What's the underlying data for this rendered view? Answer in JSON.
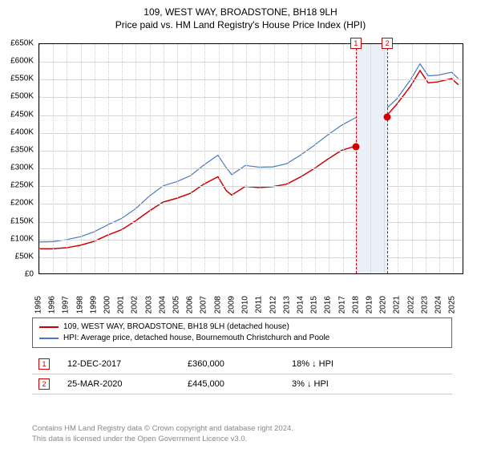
{
  "title": "109, WEST WAY, BROADSTONE, BH18 9LH",
  "subtitle": "Price paid vs. HM Land Registry's House Price Index (HPI)",
  "chart": {
    "type": "line",
    "xlim": [
      1995,
      2025.8
    ],
    "ylim": [
      0,
      650000
    ],
    "ytick_step": 50000,
    "y_prefix": "£",
    "y_suffix": "K",
    "x_ticks": [
      1995,
      1996,
      1997,
      1998,
      1999,
      2000,
      2001,
      2002,
      2003,
      2004,
      2005,
      2006,
      2007,
      2008,
      2009,
      2010,
      2011,
      2012,
      2013,
      2014,
      2015,
      2016,
      2017,
      2018,
      2019,
      2020,
      2021,
      2022,
      2023,
      2024,
      2025
    ],
    "background_color": "#ffffff",
    "grid_color": "#d7d7d7",
    "border_color": "#000000",
    "series": [
      {
        "name": "property",
        "label": "109, WEST WAY, BROADSTONE, BH18 9LH (detached house)",
        "color": "#d40000",
        "line_width": 1.5,
        "points": [
          [
            1995,
            70000
          ],
          [
            1996,
            70000
          ],
          [
            1997,
            73000
          ],
          [
            1998,
            80000
          ],
          [
            1999,
            91000
          ],
          [
            2000,
            109000
          ],
          [
            2001,
            124000
          ],
          [
            2002,
            149000
          ],
          [
            2003,
            177000
          ],
          [
            2004,
            202000
          ],
          [
            2005,
            213000
          ],
          [
            2006,
            227000
          ],
          [
            2007,
            254000
          ],
          [
            2008,
            274000
          ],
          [
            2008.6,
            235000
          ],
          [
            2009,
            222000
          ],
          [
            2010,
            247000
          ],
          [
            2011,
            243000
          ],
          [
            2012,
            246000
          ],
          [
            2013,
            253000
          ],
          [
            2014,
            273000
          ],
          [
            2015,
            297000
          ],
          [
            2016,
            324000
          ],
          [
            2017,
            349000
          ],
          [
            2017.95,
            360000
          ],
          [
            2018.5,
            369000
          ],
          [
            2019,
            374000
          ],
          [
            2020,
            375000
          ],
          [
            2020.23,
            445000
          ],
          [
            2021,
            479000
          ],
          [
            2022,
            530000
          ],
          [
            2022.7,
            575000
          ],
          [
            2023.3,
            540000
          ],
          [
            2024,
            543000
          ],
          [
            2025,
            552000
          ],
          [
            2025.5,
            535000
          ]
        ]
      },
      {
        "name": "hpi",
        "label": "HPI: Average price, detached house, Bournemouth Christchurch and Poole",
        "color": "#4a78c4",
        "line_width": 1.2,
        "points": [
          [
            1995,
            89000
          ],
          [
            1996,
            90000
          ],
          [
            1997,
            96000
          ],
          [
            1998,
            104000
          ],
          [
            1999,
            118000
          ],
          [
            2000,
            138000
          ],
          [
            2001,
            156000
          ],
          [
            2002,
            183000
          ],
          [
            2003,
            219000
          ],
          [
            2004,
            248000
          ],
          [
            2005,
            260000
          ],
          [
            2006,
            277000
          ],
          [
            2007,
            308000
          ],
          [
            2008,
            335000
          ],
          [
            2008.6,
            300000
          ],
          [
            2009,
            280000
          ],
          [
            2010,
            306000
          ],
          [
            2011,
            301000
          ],
          [
            2012,
            302000
          ],
          [
            2013,
            311000
          ],
          [
            2014,
            335000
          ],
          [
            2015,
            363000
          ],
          [
            2016,
            393000
          ],
          [
            2017,
            420000
          ],
          [
            2017.95,
            440000
          ],
          [
            2018.5,
            450000
          ],
          [
            2019,
            455000
          ],
          [
            2020,
            458000
          ],
          [
            2021,
            494000
          ],
          [
            2022,
            548000
          ],
          [
            2022.7,
            594000
          ],
          [
            2023.3,
            560000
          ],
          [
            2024,
            562000
          ],
          [
            2025,
            570000
          ],
          [
            2025.5,
            552000
          ]
        ]
      }
    ],
    "band": {
      "x_start": 2017.95,
      "x_end": 2020.23,
      "color": "#eaeff8"
    },
    "markers": [
      {
        "label": "1",
        "x": 2017.95,
        "y": 360000,
        "color": "#d40000"
      },
      {
        "label": "2",
        "x": 2020.23,
        "y": 445000,
        "color": "#d40000"
      }
    ]
  },
  "sales": [
    {
      "marker": "1",
      "marker_color": "#d40000",
      "date": "12-DEC-2017",
      "price": "£360,000",
      "diff": "18% ↓ HPI"
    },
    {
      "marker": "2",
      "marker_color": "#d40000",
      "date": "25-MAR-2020",
      "price": "£445,000",
      "diff": "3% ↓ HPI"
    }
  ],
  "footer_line1": "Contains HM Land Registry data © Crown copyright and database right 2024.",
  "footer_line2": "This data is licensed under the Open Government Licence v3.0."
}
